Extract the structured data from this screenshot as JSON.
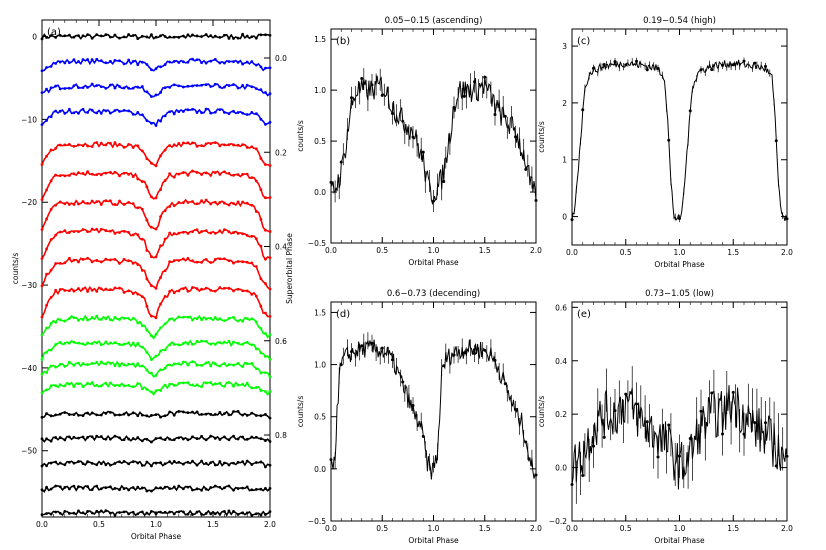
{
  "figure": {
    "description_free": true
  },
  "chart_data": [
    {
      "id": "a",
      "type": "line",
      "panel_label": "(a)",
      "xlabel": "Orbital Phase",
      "ylabel": "counts/s",
      "right_label": "Superorbital Phase",
      "xlim": [
        0,
        2
      ],
      "ylim": [
        -58,
        2
      ],
      "x_ticks": [
        "0.0",
        "0.5",
        "1.0",
        "1.5",
        "2.0"
      ],
      "y_ticks": [
        "0",
        "−10",
        "−20",
        "−30",
        "−40",
        "−50"
      ],
      "y_tick_values": [
        0,
        -10,
        -20,
        -30,
        -40,
        -50
      ],
      "right_ticks": [
        "0.0",
        "0.2",
        "0.4",
        "0.6",
        "0.8"
      ],
      "right_tick_offsets": [
        0,
        -15.5,
        -30.5,
        -45.5,
        -61
      ],
      "stack": [
        {
          "offset": 0,
          "amp": 0.0,
          "color": "#000000"
        },
        {
          "offset": -3,
          "amp": 1.0,
          "color": "#0000ff"
        },
        {
          "offset": -6,
          "amp": 1.0,
          "color": "#0000ff"
        },
        {
          "offset": -9,
          "amp": 1.6,
          "color": "#0000ff"
        },
        {
          "offset": -13,
          "amp": 2.6,
          "color": "#ff0000"
        },
        {
          "offset": -16.5,
          "amp": 3.0,
          "color": "#ff0000"
        },
        {
          "offset": -20,
          "amp": 3.3,
          "color": "#ff0000"
        },
        {
          "offset": -23.5,
          "amp": 3.3,
          "color": "#ff0000"
        },
        {
          "offset": -27,
          "amp": 3.2,
          "color": "#ff0000"
        },
        {
          "offset": -30.5,
          "amp": 3.2,
          "color": "#ff0000"
        },
        {
          "offset": -34,
          "amp": 2.2,
          "color": "#00ff00"
        },
        {
          "offset": -37,
          "amp": 1.8,
          "color": "#00ff00"
        },
        {
          "offset": -39.5,
          "amp": 1.4,
          "color": "#00ff00"
        },
        {
          "offset": -42,
          "amp": 1.0,
          "color": "#00ff00"
        },
        {
          "offset": -45.5,
          "amp": 0.3,
          "color": "#000000"
        },
        {
          "offset": -48.5,
          "amp": 0.2,
          "color": "#000000"
        },
        {
          "offset": -51.5,
          "amp": 0.2,
          "color": "#000000"
        },
        {
          "offset": -54.5,
          "amp": 0.2,
          "color": "#000000"
        },
        {
          "offset": -57.5,
          "amp": 0.1,
          "color": "#000000"
        }
      ]
    },
    {
      "id": "b",
      "type": "line",
      "panel_label": "(b)",
      "title": "0.05−0.15 (ascending)",
      "xlabel": "Orbital Phase",
      "ylabel": "counts/s",
      "xlim": [
        0,
        2
      ],
      "ylim": [
        -0.5,
        1.6
      ],
      "x_ticks": [
        "0.0",
        "0.5",
        "1.0",
        "1.5",
        "2.0"
      ],
      "x_tick_values": [
        0,
        0.5,
        1,
        1.5,
        2
      ],
      "y_ticks": [
        "−0.5",
        "0.0",
        "0.5",
        "1.0",
        "1.5"
      ],
      "y_tick_values": [
        -0.5,
        0,
        0.5,
        1,
        1.5
      ],
      "profile": {
        "phase": [
          0.0,
          0.05,
          0.1,
          0.15,
          0.2,
          0.25,
          0.3,
          0.4,
          0.5,
          0.6,
          0.7,
          0.8,
          0.9,
          0.95,
          1.0
        ],
        "rate": [
          0.0,
          0.05,
          0.2,
          0.5,
          0.85,
          1.0,
          1.0,
          1.0,
          1.05,
          0.85,
          0.7,
          0.6,
          0.3,
          0.05,
          -0.05
        ]
      },
      "noise": 0.12
    },
    {
      "id": "c",
      "type": "line",
      "panel_label": "(c)",
      "title": "0.19−0.54 (high)",
      "xlabel": "Orbital Phase",
      "ylabel": "counts/s",
      "xlim": [
        0,
        2
      ],
      "ylim": [
        -0.5,
        3.3
      ],
      "x_ticks": [
        "0.0",
        "0.5",
        "1.0",
        "1.5",
        "2.0"
      ],
      "x_tick_values": [
        0,
        0.5,
        1,
        1.5,
        2
      ],
      "y_ticks": [
        "0",
        "1",
        "2",
        "3"
      ],
      "y_tick_values": [
        0,
        1,
        2,
        3
      ],
      "profile": {
        "phase": [
          0.0,
          0.03,
          0.06,
          0.09,
          0.12,
          0.18,
          0.3,
          0.5,
          0.7,
          0.8,
          0.86,
          0.89,
          0.92,
          0.95,
          1.0
        ],
        "rate": [
          -0.1,
          0.2,
          0.9,
          1.6,
          2.3,
          2.55,
          2.65,
          2.7,
          2.65,
          2.6,
          2.45,
          1.7,
          0.6,
          0.0,
          -0.05
        ]
      },
      "noise": 0.07
    },
    {
      "id": "d",
      "type": "line",
      "panel_label": "(d)",
      "title": "0.6−0.73 (decending)",
      "xlabel": "Orbital Phase",
      "ylabel": "counts/s",
      "xlim": [
        0,
        2
      ],
      "ylim": [
        -0.5,
        1.6
      ],
      "x_ticks": [
        "0.0",
        "0.5",
        "1.0",
        "1.5",
        "2.0"
      ],
      "x_tick_values": [
        0,
        0.5,
        1,
        1.5,
        2
      ],
      "y_ticks": [
        "−0.5",
        "0.0",
        "0.5",
        "1.0",
        "1.5"
      ],
      "y_tick_values": [
        -0.5,
        0,
        0.5,
        1,
        1.5
      ],
      "profile": {
        "phase": [
          0.0,
          0.04,
          0.08,
          0.12,
          0.18,
          0.3,
          0.45,
          0.55,
          0.62,
          0.7,
          0.78,
          0.82,
          0.86,
          0.9,
          0.94,
          1.0
        ],
        "rate": [
          0.0,
          0.15,
          0.9,
          1.05,
          1.1,
          1.15,
          1.15,
          1.1,
          1.0,
          0.8,
          0.6,
          0.5,
          0.45,
          0.3,
          0.05,
          -0.05
        ]
      },
      "noise": 0.09
    },
    {
      "id": "e",
      "type": "line",
      "panel_label": "(e)",
      "title": "0.73−1.05 (low)",
      "xlabel": "Orbital Phase",
      "ylabel": "counts/s",
      "xlim": [
        0,
        2
      ],
      "ylim": [
        -0.2,
        0.62
      ],
      "x_ticks": [
        "0.0",
        "0.5",
        "1.0",
        "1.5",
        "2.0"
      ],
      "x_tick_values": [
        0,
        0.5,
        1,
        1.5,
        2
      ],
      "y_ticks": [
        "−0.2",
        "0.0",
        "0.2",
        "0.4",
        "0.6"
      ],
      "y_tick_values": [
        -0.2,
        0,
        0.2,
        0.4,
        0.6
      ],
      "profile": {
        "phase": [
          0.0,
          0.1,
          0.2,
          0.3,
          0.4,
          0.5,
          0.6,
          0.7,
          0.8,
          0.9,
          1.0
        ],
        "rate": [
          0.0,
          0.05,
          0.15,
          0.2,
          0.2,
          0.25,
          0.2,
          0.15,
          0.12,
          0.08,
          0.0
        ]
      },
      "noise": 0.09
    }
  ]
}
